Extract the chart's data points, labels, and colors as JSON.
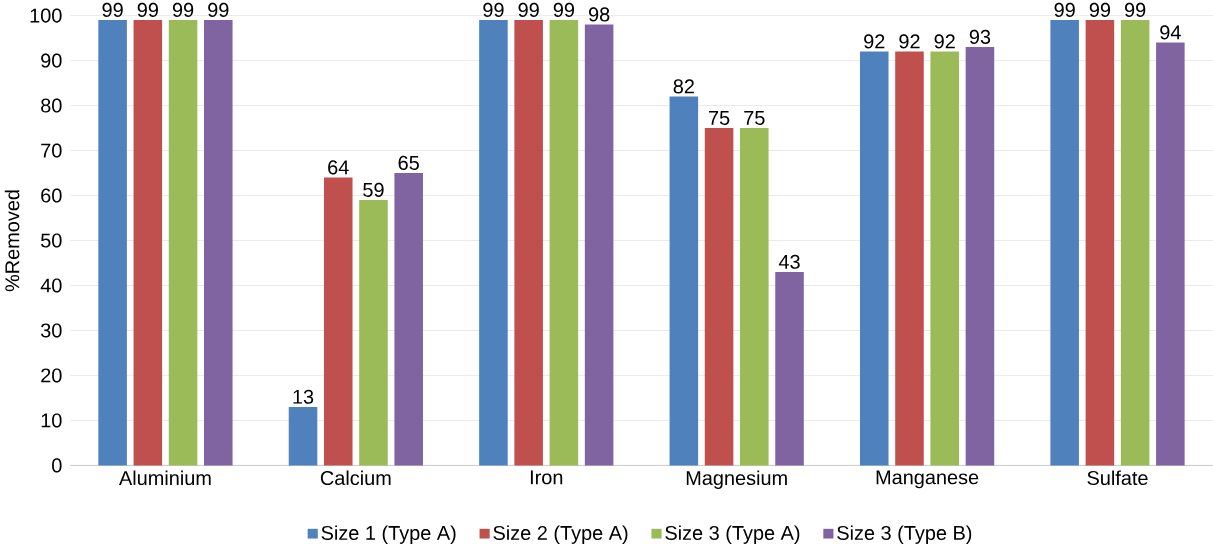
{
  "chart_data": {
    "type": "bar",
    "ylabel": "%Removed",
    "categories": [
      "Aluminium",
      "Calcium",
      "Iron",
      "Magnesium",
      "Manganese",
      "Sulfate"
    ],
    "series": [
      {
        "name": "Size 1 (Type A)",
        "color": "#4f81bd",
        "values": [
          99,
          13,
          99,
          82,
          92,
          99
        ]
      },
      {
        "name": "Size 2 (Type A)",
        "color": "#c0504d",
        "values": [
          99,
          64,
          99,
          75,
          92,
          99
        ]
      },
      {
        "name": "Size 3 (Type A)",
        "color": "#9bbb59",
        "values": [
          99,
          59,
          99,
          75,
          92,
          99
        ]
      },
      {
        "name": "Size 3 (Type B)",
        "color": "#8064a2",
        "values": [
          99,
          65,
          98,
          43,
          93,
          94
        ]
      }
    ],
    "ylim": [
      0,
      100
    ],
    "yticks": [
      0,
      10,
      20,
      30,
      40,
      50,
      60,
      70,
      80,
      90,
      100
    ],
    "grid": "y",
    "legend": "bottom",
    "data_labels": true
  }
}
